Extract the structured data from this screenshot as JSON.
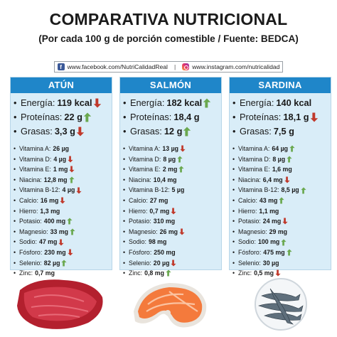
{
  "title": "COMPARATIVA NUTRICIONAL",
  "subtitle": "(Por cada 100 g de porción comestible / Fuente: BEDCA)",
  "social": {
    "facebook": "www.facebook.com/NutriCalidadReal",
    "separator": "|",
    "instagram": "www.instagram.com/nutricalidad"
  },
  "colors": {
    "header": "#1f86c9",
    "panel": "#d9edf8",
    "up": "#6aa84f",
    "down": "#c0392b"
  },
  "columns": [
    {
      "name": "ATÚN",
      "main": [
        {
          "label": "Energía:",
          "value": "119 kcal",
          "arrow": "down"
        },
        {
          "label": "Proteínas:",
          "value": "22 g",
          "arrow": "up"
        },
        {
          "label": "Grasas:",
          "value": "3,3 g",
          "arrow": "down"
        }
      ],
      "nutrients": [
        {
          "label": "Vitamina A:",
          "value": "26 µg",
          "arrow": ""
        },
        {
          "label": "Vitamina D:",
          "value": "4 µg",
          "arrow": "down"
        },
        {
          "label": "Vitamina E:",
          "value": "1 mg",
          "arrow": "down"
        },
        {
          "label": "Niacina:",
          "value": "12,8 mg",
          "arrow": "up"
        },
        {
          "label": "Vitamina B-12:",
          "value": "4 µg",
          "arrow": "down"
        },
        {
          "label": "Calcio:",
          "value": "16 mg",
          "arrow": "down"
        },
        {
          "label": "Hierro:",
          "value": "1,3 mg",
          "arrow": ""
        },
        {
          "label": "Potasio:",
          "value": "400 mg",
          "arrow": "up"
        },
        {
          "label": "Magnesio:",
          "value": "33 mg",
          "arrow": "up"
        },
        {
          "label": "Sodio:",
          "value": "47 mg",
          "arrow": "down"
        },
        {
          "label": "Fósforo:",
          "value": "230 mg",
          "arrow": "down"
        },
        {
          "label": "Selenio:",
          "value": "82 µg",
          "arrow": "up"
        },
        {
          "label": "Zinc:",
          "value": "0,7 mg",
          "arrow": ""
        }
      ]
    },
    {
      "name": "SALMÓN",
      "main": [
        {
          "label": "Energía:",
          "value": "182 kcal",
          "arrow": "up"
        },
        {
          "label": "Proteínas:",
          "value": "18,4 g",
          "arrow": ""
        },
        {
          "label": "Grasas:",
          "value": "12 g",
          "arrow": "up"
        }
      ],
      "nutrients": [
        {
          "label": "Vitamina A:",
          "value": "13 µg",
          "arrow": "down"
        },
        {
          "label": "Vitamina D:",
          "value": "8 µg",
          "arrow": "up"
        },
        {
          "label": "Vitamina E:",
          "value": "2 mg",
          "arrow": "up"
        },
        {
          "label": "Niacina:",
          "value": "10,4 mg",
          "arrow": ""
        },
        {
          "label": "Vitamina B-12:",
          "value": "5 µg",
          "arrow": ""
        },
        {
          "label": "Calcio:",
          "value": "27 mg",
          "arrow": ""
        },
        {
          "label": "Hierro:",
          "value": "0,7 mg",
          "arrow": "down"
        },
        {
          "label": "Potasio:",
          "value": "310 mg",
          "arrow": ""
        },
        {
          "label": "Magnesio:",
          "value": "26 mg",
          "arrow": "down"
        },
        {
          "label": "Sodio:",
          "value": "98 mg",
          "arrow": ""
        },
        {
          "label": "Fósforo:",
          "value": "250 mg",
          "arrow": ""
        },
        {
          "label": "Selenio:",
          "value": "20 µg",
          "arrow": "down"
        },
        {
          "label": "Zinc:",
          "value": "0,8 mg",
          "arrow": "up"
        }
      ]
    },
    {
      "name": "SARDINA",
      "main": [
        {
          "label": "Energía:",
          "value": "140 kcal",
          "arrow": ""
        },
        {
          "label": "Proteínas:",
          "value": "18,1 g",
          "arrow": "down"
        },
        {
          "label": "Grasas:",
          "value": "7,5 g",
          "arrow": ""
        }
      ],
      "nutrients": [
        {
          "label": "Vitamina A:",
          "value": "64 µg",
          "arrow": "up"
        },
        {
          "label": "Vitamina D:",
          "value": "8 µg",
          "arrow": "up"
        },
        {
          "label": "Vitamina E:",
          "value": "1,6 mg",
          "arrow": ""
        },
        {
          "label": "Niacina:",
          "value": "6,4 mg",
          "arrow": "down"
        },
        {
          "label": "Vitamina B-12:",
          "value": "8,5 µg",
          "arrow": "up"
        },
        {
          "label": "Calcio:",
          "value": "43 mg",
          "arrow": "up"
        },
        {
          "label": "Hierro:",
          "value": "1,1 mg",
          "arrow": ""
        },
        {
          "label": "Potasio:",
          "value": "24 mg",
          "arrow": "down"
        },
        {
          "label": "Magnesio:",
          "value": "29 mg",
          "arrow": ""
        },
        {
          "label": "Sodio:",
          "value": "100 mg",
          "arrow": "up"
        },
        {
          "label": "Fósforo:",
          "value": "475 mg",
          "arrow": "up"
        },
        {
          "label": "Selenio:",
          "value": "30 µg",
          "arrow": ""
        },
        {
          "label": "Zinc:",
          "value": "0,5 mg",
          "arrow": "down"
        }
      ]
    }
  ],
  "images": [
    "tuna-steak",
    "salmon-steak",
    "sardines-plate"
  ]
}
